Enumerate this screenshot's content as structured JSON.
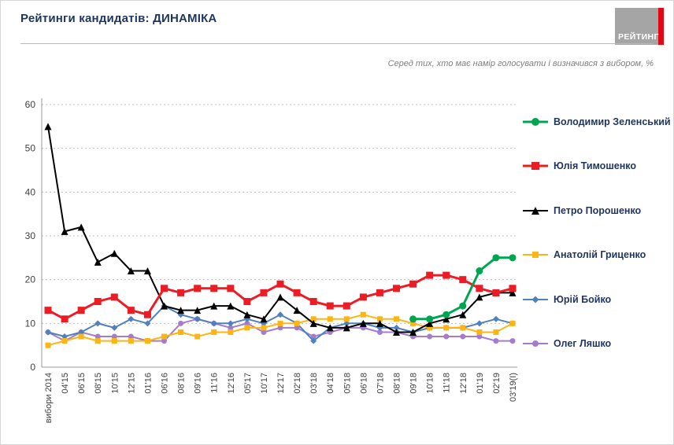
{
  "header": {
    "title": "Рейтинги кандидатів: ДИНАМІКА",
    "subtitle": "Серед тих, хто має намір голосувати і визначився з вибором, %",
    "logo_text": "РЕЙТИНГ",
    "logo_bg_color": "#a5a5a5",
    "logo_stripe_color": "#e30613"
  },
  "chart_data": {
    "type": "line",
    "title": "Рейтинги кандидатів: ДИНАМІКА",
    "subtitle": "Серед тих, хто має намір голосувати і визначився з вибором, %",
    "ylabel": "%",
    "ylim": [
      0,
      60
    ],
    "yticks": [
      0,
      10,
      20,
      30,
      40,
      50,
      60
    ],
    "grid": "horizontal-dotted",
    "legend_position": "right",
    "categories": [
      "вибори 2014",
      "04'15",
      "06'15",
      "08'15",
      "10'15",
      "12'15",
      "01'16",
      "06'16",
      "08'16",
      "09'16",
      "11'16",
      "12'16",
      "05'17",
      "10'17",
      "12'17",
      "02'18",
      "03'18",
      "04'18",
      "05'18",
      "06'18",
      "07'18",
      "08'18",
      "09'18",
      "10'18",
      "11'18",
      "12'18",
      "01'19",
      "02'19",
      "03'19(I)"
    ],
    "series": [
      {
        "name": "Володимир Зеленський",
        "color": "#00a550",
        "marker": "circle",
        "line_width": 3,
        "marker_size": 9,
        "values": [
          null,
          null,
          null,
          null,
          null,
          null,
          null,
          null,
          null,
          null,
          null,
          null,
          null,
          null,
          null,
          null,
          null,
          null,
          null,
          null,
          null,
          null,
          11,
          11,
          12,
          14,
          22,
          25,
          25
        ]
      },
      {
        "name": "Юлія Тимошенко",
        "color": "#ec1c24",
        "marker": "square",
        "line_width": 3,
        "marker_size": 9,
        "values": [
          13,
          11,
          13,
          15,
          16,
          13,
          12,
          18,
          17,
          18,
          18,
          18,
          15,
          17,
          19,
          17,
          15,
          14,
          14,
          16,
          17,
          18,
          19,
          21,
          21,
          20,
          18,
          17,
          18
        ]
      },
      {
        "name": "Петро Порошенко",
        "color": "#000000",
        "marker": "triangle",
        "line_width": 2,
        "marker_size": 9,
        "values": [
          55,
          31,
          32,
          24,
          26,
          22,
          22,
          14,
          13,
          13,
          14,
          14,
          12,
          11,
          16,
          13,
          10,
          9,
          9,
          10,
          10,
          8,
          8,
          10,
          11,
          12,
          16,
          17,
          17
        ]
      },
      {
        "name": "Анатолій Гриценко",
        "color": "#fcb514",
        "marker": "square",
        "line_width": 2,
        "marker_size": 7,
        "values": [
          5,
          6,
          7,
          6,
          6,
          6,
          6,
          7,
          8,
          7,
          8,
          8,
          9,
          9,
          10,
          10,
          11,
          11,
          11,
          12,
          11,
          11,
          10,
          9,
          9,
          9,
          8,
          8,
          10
        ]
      },
      {
        "name": "Юрій Бойко",
        "color": "#4f81bc",
        "marker": "diamond",
        "line_width": 2,
        "marker_size": 8,
        "values": [
          8,
          7,
          8,
          10,
          9,
          11,
          10,
          14,
          12,
          11,
          10,
          10,
          11,
          10,
          12,
          10,
          6,
          9,
          10,
          10,
          9,
          9,
          8,
          9,
          9,
          9,
          10,
          11,
          10
        ]
      },
      {
        "name": "Олег Ляшко",
        "color": "#a57ccd",
        "marker": "circle",
        "line_width": 2,
        "marker_size": 7,
        "values": [
          8,
          6,
          8,
          7,
          7,
          7,
          6,
          6,
          10,
          11,
          10,
          9,
          10,
          8,
          9,
          9,
          7,
          8,
          9,
          9,
          8,
          8,
          7,
          7,
          7,
          7,
          7,
          6,
          6
        ]
      }
    ]
  }
}
